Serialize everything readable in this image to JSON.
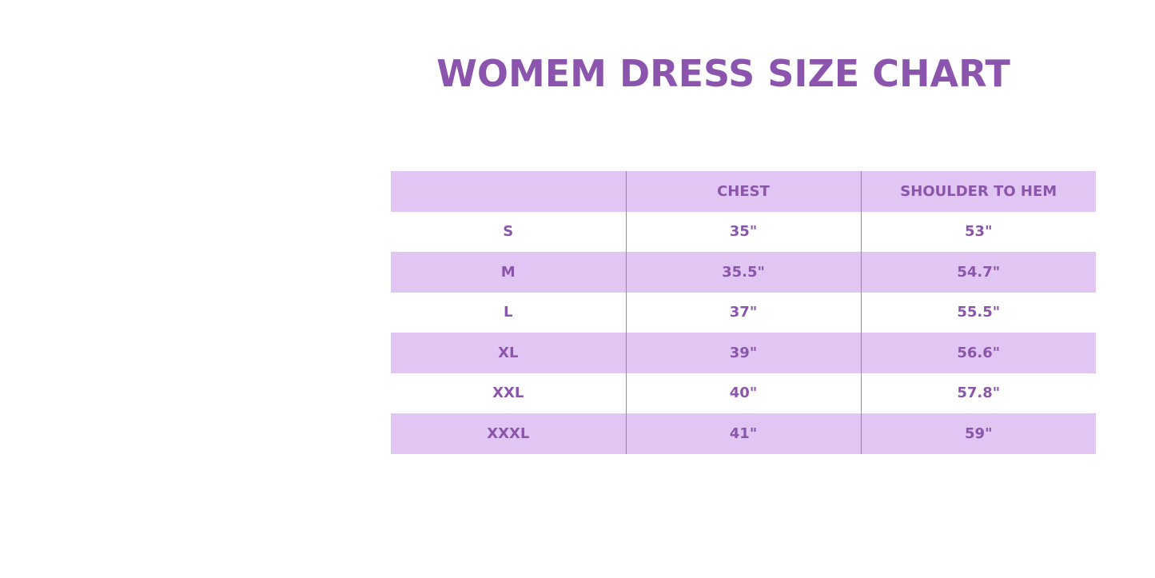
{
  "title": "WOMEM DRESS SIZE CHART",
  "colors": {
    "accent": "#8b55ad",
    "band": "#e1c6f4",
    "divider": "#a67bc5"
  },
  "table": {
    "headers": [
      "",
      "CHEST",
      "SHOULDER TO HEM"
    ],
    "rows": [
      [
        "S",
        "35\"",
        "53\""
      ],
      [
        "M",
        "35.5\"",
        "54.7\""
      ],
      [
        "L",
        "37\"",
        "55.5\""
      ],
      [
        "XL",
        "39\"",
        "56.6\""
      ],
      [
        "XXL",
        "40\"",
        "57.8\""
      ],
      [
        "XXXL",
        "41\"",
        "59\""
      ]
    ]
  }
}
